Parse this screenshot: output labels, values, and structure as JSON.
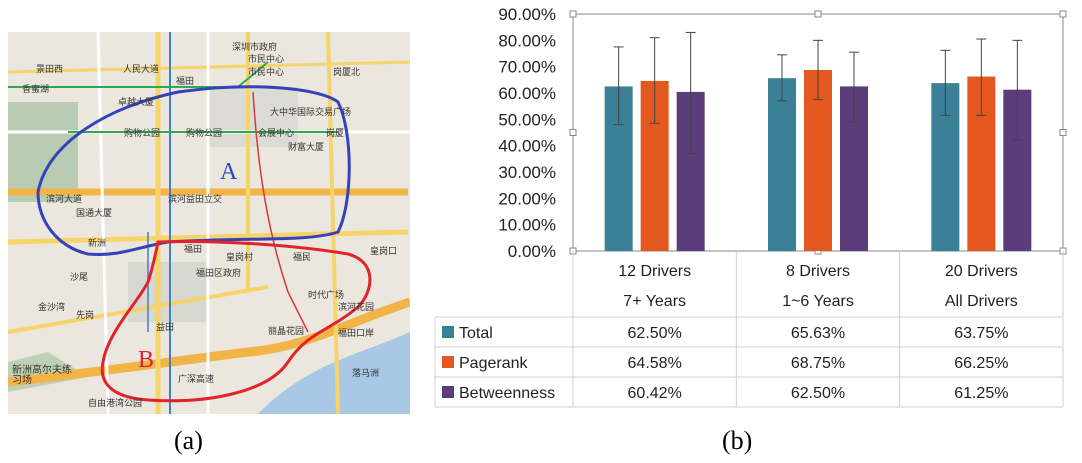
{
  "captions": {
    "a": "(a)",
    "b": "(b)"
  },
  "map": {
    "region_a_label": "A",
    "region_b_label": "B",
    "region_a_color": "#3344bb",
    "region_b_color": "#e0242a",
    "labels": [
      "深圳市政府",
      "市民中心",
      "市民中心",
      "景田西",
      "人民大道",
      "福田",
      "香蜜湖",
      "岗厦北",
      "卓越大厦",
      "购物公园",
      "购物公园",
      "会展中心",
      "岗厦",
      "大中华国际交易广场",
      "财富大厦",
      "滨河大道",
      "滨河益田立交",
      "国通大厦",
      "新洲",
      "福田",
      "皇岗村",
      "福民",
      "皇岗口",
      "沙尾",
      "福田区政府",
      "时代广场",
      "金沙湾",
      "先岗",
      "益田",
      "福田口岸",
      "新洲高尔夫练习场",
      "广深高速",
      "落马洲",
      "自由港湾公园",
      "滨河花园",
      "丽晶花园"
    ]
  },
  "chart_data": {
    "type": "bar",
    "ylim": [
      0,
      0.9
    ],
    "yticks": [
      "0.00%",
      "10.00%",
      "20.00%",
      "30.00%",
      "40.00%",
      "50.00%",
      "60.00%",
      "70.00%",
      "80.00%",
      "90.00%"
    ],
    "categories": [
      {
        "line1": "12 Drivers",
        "line2": "7+  Years"
      },
      {
        "line1": "8 Drivers",
        "line2": "1~6 Years"
      },
      {
        "line1": "20 Drivers",
        "line2": "All Drivers"
      }
    ],
    "series": [
      {
        "name": "Total",
        "color": "#3a8096",
        "values": [
          0.625,
          0.6563,
          0.6375
        ],
        "err_low": [
          0.48,
          0.57,
          0.515
        ],
        "err_high": [
          0.775,
          0.745,
          0.762
        ],
        "labels": [
          "62.50%",
          "65.63%",
          "63.75%"
        ]
      },
      {
        "name": "Pagerank",
        "color": "#e2581f",
        "values": [
          0.6458,
          0.6875,
          0.6625
        ],
        "err_low": [
          0.485,
          0.575,
          0.515
        ],
        "err_high": [
          0.81,
          0.8,
          0.805
        ],
        "labels": [
          "64.58%",
          "68.75%",
          "66.25%"
        ]
      },
      {
        "name": "Betweenness",
        "color": "#5b3d7c",
        "values": [
          0.6042,
          0.625,
          0.6125
        ],
        "err_low": [
          0.37,
          0.49,
          0.42
        ],
        "err_high": [
          0.83,
          0.755,
          0.8
        ],
        "labels": [
          "60.42%",
          "62.50%",
          "61.25%"
        ]
      }
    ]
  }
}
